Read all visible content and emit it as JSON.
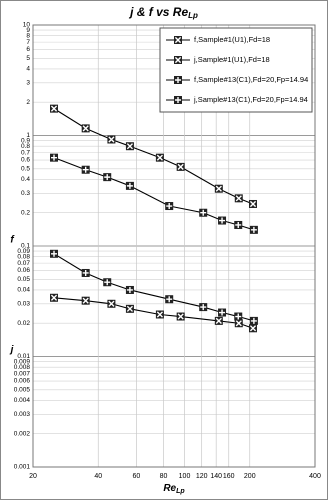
{
  "chart_data": {
    "type": "line",
    "title": "j & f vs Re",
    "title_subscript": "Lp",
    "x_label": "Re",
    "x_label_subscript": "Lp",
    "y_labels": [
      "f",
      "j"
    ],
    "log_x": true,
    "log_y": true,
    "grid": true,
    "legend": "upper right",
    "xlim": [
      20,
      400
    ],
    "xticks": [
      20,
      40,
      60,
      80,
      100,
      120,
      140,
      160,
      200,
      400
    ],
    "ylim": [
      0.001,
      10
    ],
    "yticks": [
      0.001,
      0.002,
      0.003,
      0.004,
      0.005,
      0.006,
      0.007,
      0.008,
      0.009,
      0.01,
      0.02,
      0.03,
      0.04,
      0.05,
      0.06,
      0.07,
      0.08,
      0.09,
      0.1,
      0.2,
      0.3,
      0.4,
      0.5,
      0.6,
      0.7,
      0.8,
      0.9,
      1,
      2,
      3,
      4,
      5,
      6,
      7,
      8,
      9,
      10
    ],
    "series": [
      {
        "name": "f,Sample#1(U1),Fd=18",
        "marker": "x",
        "color": "#000000",
        "x": [
          25,
          35,
          46,
          56,
          77,
          96,
          144,
          178,
          207
        ],
        "values": [
          1.75,
          1.16,
          0.92,
          0.8,
          0.63,
          0.52,
          0.33,
          0.27,
          0.24
        ]
      },
      {
        "name": "j,Sample#1(U1),Fd=18",
        "marker": "x",
        "color": "#000000",
        "x": [
          25,
          35,
          46,
          56,
          77,
          96,
          144,
          178,
          207
        ],
        "values": [
          0.034,
          0.032,
          0.03,
          0.027,
          0.024,
          0.023,
          0.021,
          0.02,
          0.018
        ]
      },
      {
        "name": "f,Sample#13(C1),Fd=20,Fp=14.94",
        "marker": "plus",
        "color": "#000000",
        "x": [
          25,
          35,
          44,
          56,
          85,
          122,
          149,
          177,
          209
        ],
        "values": [
          0.63,
          0.49,
          0.42,
          0.35,
          0.23,
          0.2,
          0.17,
          0.155,
          0.14
        ]
      },
      {
        "name": "j,Sample#13(C1),Fd=20,Fp=14.94",
        "marker": "plus",
        "color": "#000000",
        "x": [
          25,
          35,
          44,
          56,
          85,
          122,
          149,
          177,
          209
        ],
        "values": [
          0.085,
          0.057,
          0.047,
          0.04,
          0.033,
          0.028,
          0.025,
          0.023,
          0.021
        ]
      }
    ]
  }
}
